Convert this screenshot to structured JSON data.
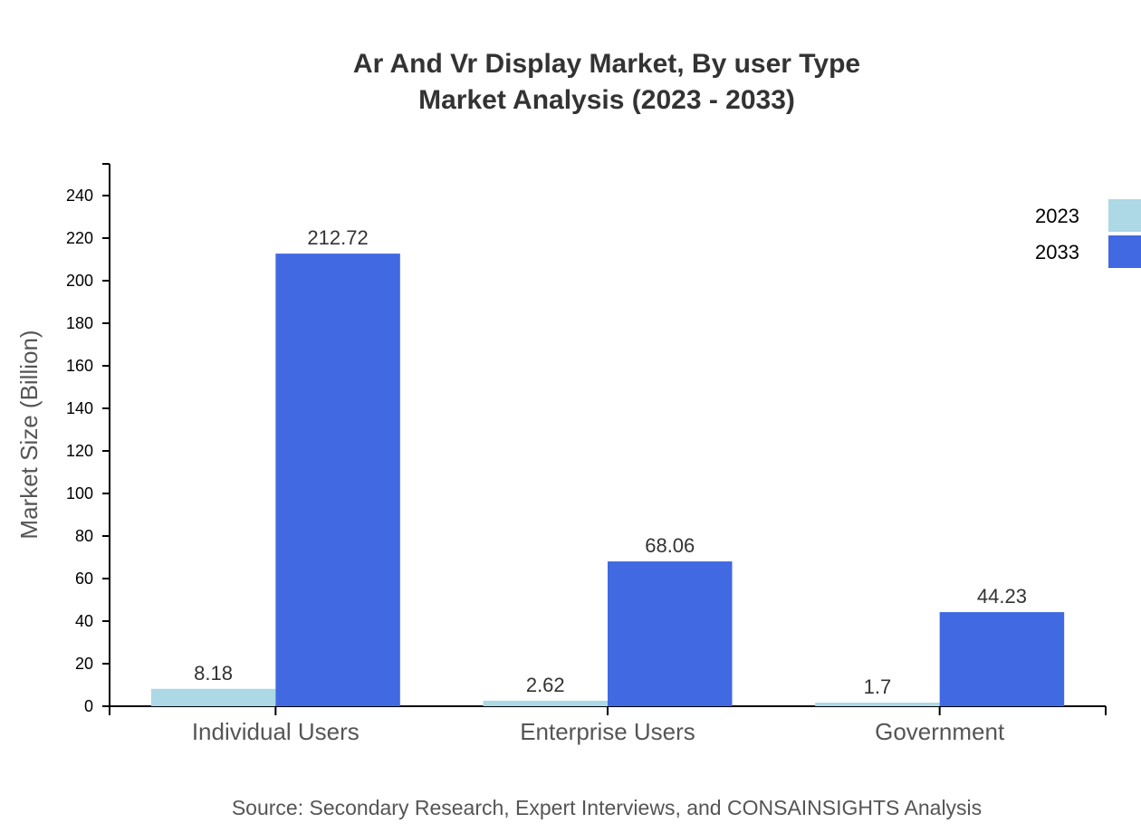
{
  "chart_data": {
    "type": "bar",
    "title": [
      "Ar And Vr Display Market, By user Type",
      "Market Analysis (2023 - 2033)"
    ],
    "xlabel": "",
    "ylabel": "Market Size (Billion)",
    "ylim": [
      0,
      255
    ],
    "yticks": [
      0,
      20,
      40,
      60,
      80,
      100,
      120,
      140,
      160,
      180,
      200,
      220,
      240
    ],
    "categories": [
      "Individual Users",
      "Enterprise Users",
      "Government"
    ],
    "series": [
      {
        "name": "2023",
        "color": "#add8e6",
        "values": [
          8.18,
          2.62,
          1.7
        ]
      },
      {
        "name": "2033",
        "color": "#4169e1",
        "values": [
          212.72,
          68.06,
          44.23
        ]
      }
    ],
    "legend": "top-right",
    "grid": false,
    "source": "Source: Secondary Research, Expert Interviews, and CONSAINSIGHTS Analysis"
  }
}
